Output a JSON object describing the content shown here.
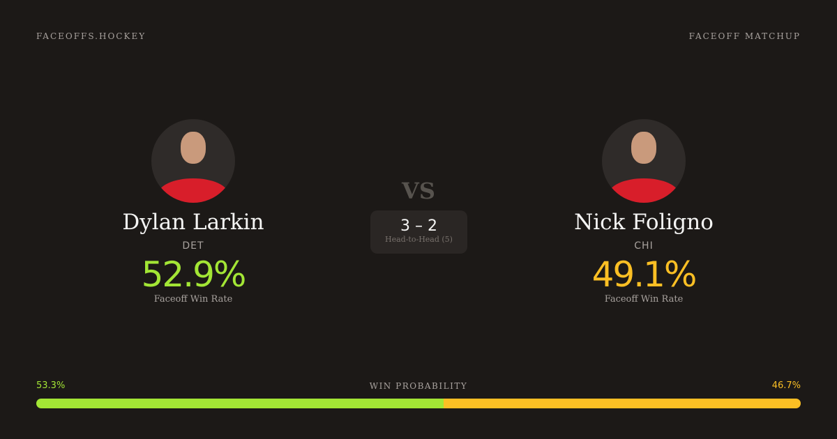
{
  "brand": "FACEOFFS.HOCKEY",
  "page_kind": "FACEOFF MATCHUP",
  "colors": {
    "player1": "#a3e635",
    "player2": "#fbbf24"
  },
  "players": [
    {
      "name": "Dylan Larkin",
      "team": "DET",
      "win_rate": "52.9%",
      "win_rate_label": "Faceoff Win Rate",
      "avatar": "player-headshot"
    },
    {
      "name": "Nick Foligno",
      "team": "CHI",
      "win_rate": "49.1%",
      "win_rate_label": "Faceoff Win Rate",
      "avatar": "player-headshot"
    }
  ],
  "vs": "VS",
  "head_to_head": {
    "score": "3 – 2",
    "label": "Head-to-Head (5)"
  },
  "win_probability": {
    "label": "WIN PROBABILITY",
    "player1": "53.3%",
    "player2": "46.7%",
    "player1_value": 53.3,
    "player2_value": 46.7
  }
}
